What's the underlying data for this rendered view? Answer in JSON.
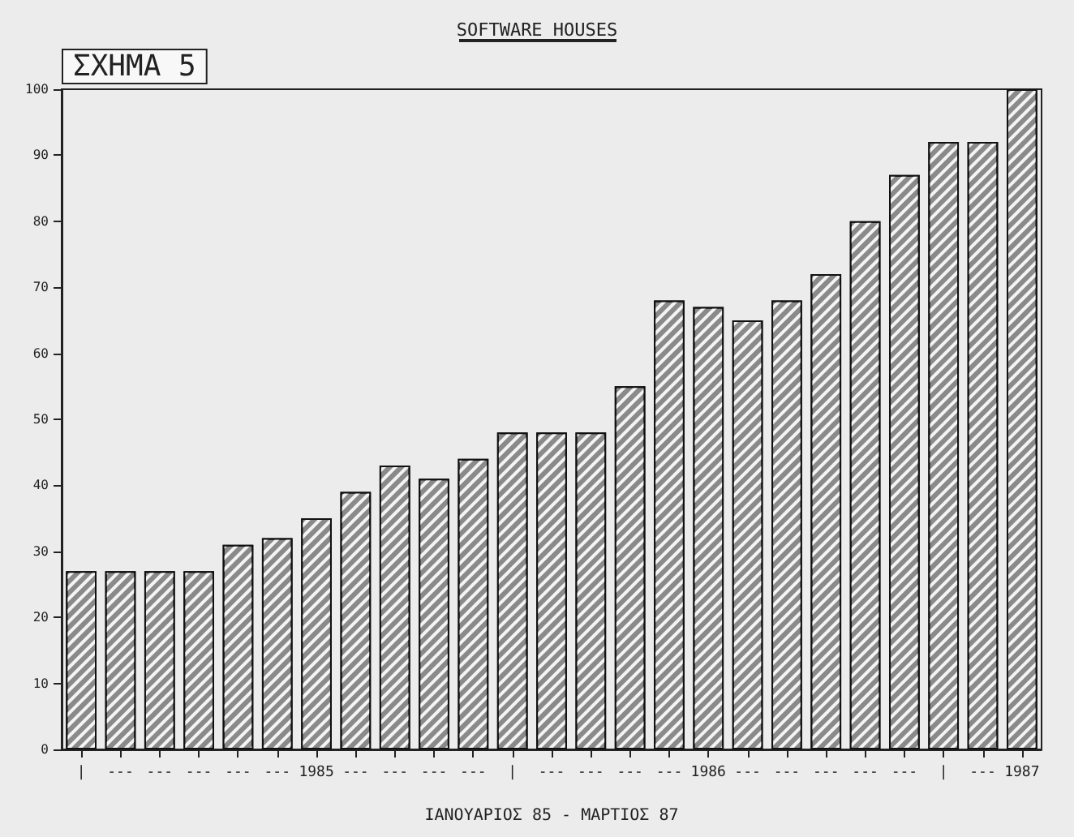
{
  "chart_data": {
    "type": "bar",
    "title": "SOFTWARE HOUSES",
    "annotations": [
      "ΣΧΗΜΑ 5"
    ],
    "xlabel": "ΙΑΝΟΥΑΡΙΟΣ 85 - ΜΑΡΤΙΟΣ 87",
    "categories": [
      "|",
      "---",
      "---",
      "---",
      "---",
      "---",
      "1985",
      "---",
      "---",
      "---",
      "---",
      "|",
      "---",
      "---",
      "---",
      "---",
      "1986",
      "---",
      "---",
      "---",
      "---",
      "---",
      "|",
      "---",
      "1987"
    ],
    "values": [
      27,
      27,
      27,
      27,
      31,
      32,
      35,
      39,
      43,
      41,
      44,
      48,
      48,
      48,
      55,
      68,
      67,
      65,
      68,
      72,
      80,
      87,
      92,
      92,
      100
    ],
    "color": "#8a8a8a",
    "ylim": [
      0,
      100
    ],
    "yticks": [
      0,
      10,
      20,
      30,
      40,
      50,
      60,
      70,
      80,
      90,
      100
    ],
    "grid": false
  }
}
